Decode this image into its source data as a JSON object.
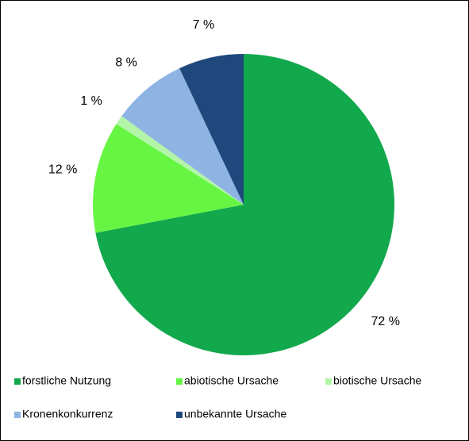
{
  "chart_data": {
    "type": "pie",
    "categories": [
      "forstliche Nutzung",
      "abiotische Ursache",
      "biotische Ursache",
      "Kronenkonkurrenz",
      "unbekannte Ursache"
    ],
    "values": [
      72,
      12,
      1,
      8,
      7
    ],
    "value_labels": [
      "72 %",
      "12 %",
      "1 %",
      "8 %",
      "7 %"
    ],
    "colors": [
      "#12a84c",
      "#66f542",
      "#b3f5a8",
      "#8eb4e3",
      "#1f497d"
    ],
    "legend": "bottom"
  }
}
